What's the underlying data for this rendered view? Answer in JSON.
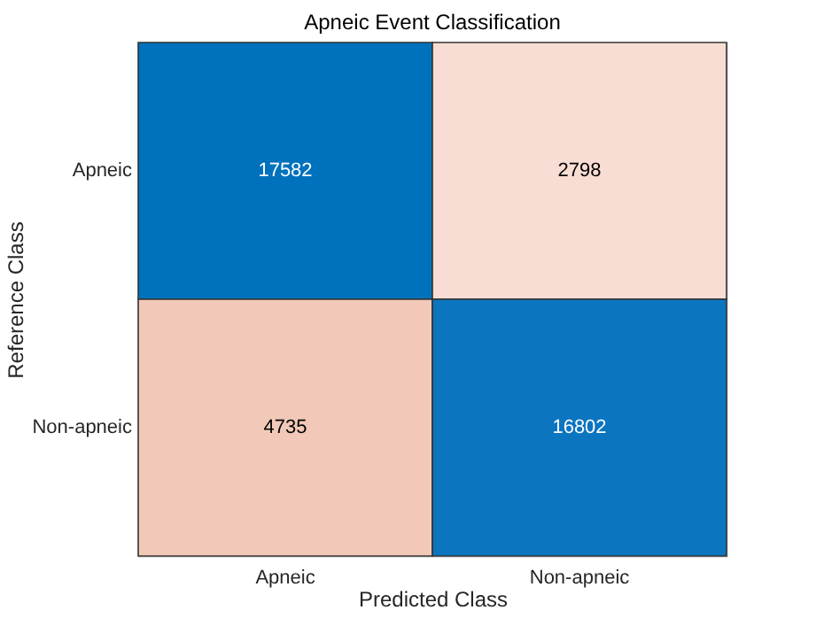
{
  "chart_data": {
    "type": "heatmap",
    "title": "Apneic Event Classification",
    "xlabel": "Predicted Class",
    "ylabel": "Reference Class",
    "categories": [
      "Apneic",
      "Non-apneic"
    ],
    "y_categories": [
      "Apneic",
      "Non-apneic"
    ],
    "cells": [
      [
        17582,
        2798
      ],
      [
        4735,
        16802
      ]
    ],
    "colors": [
      [
        "#0072bd",
        "#f7ddd3"
      ],
      [
        "#f2c9b8",
        "#0b75c0"
      ]
    ],
    "data_labels": true
  }
}
